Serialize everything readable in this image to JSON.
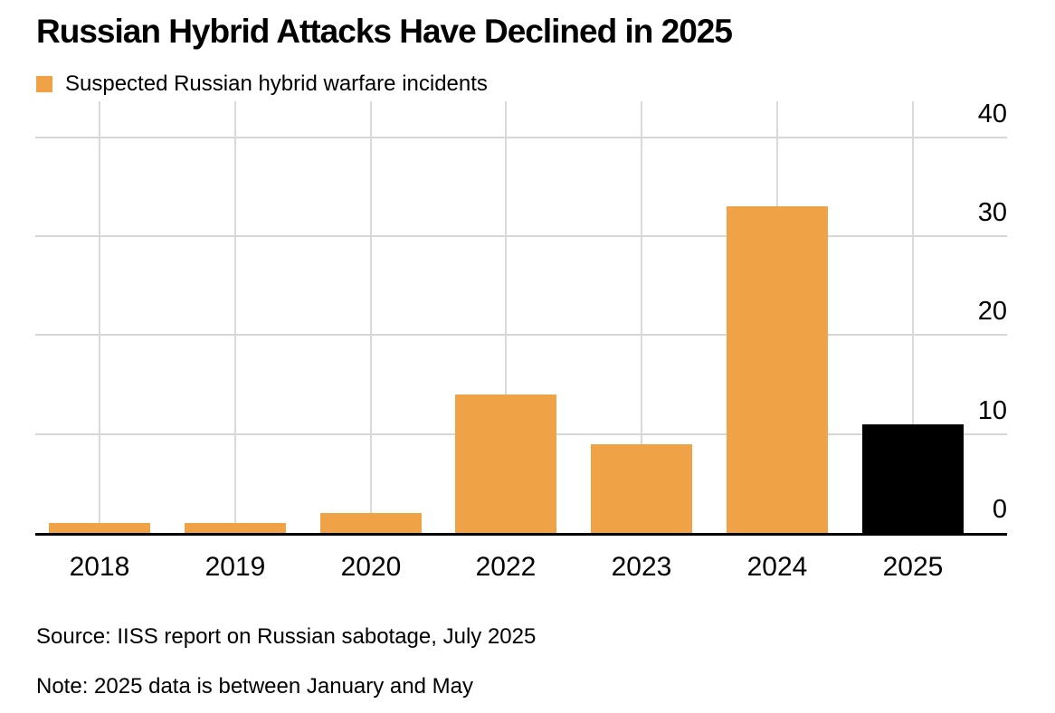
{
  "header": {
    "title": "Russian Hybrid Attacks Have Declined in 2025"
  },
  "legend": {
    "label": "Suspected Russian hybrid warfare incidents",
    "swatch_color": "#F0A346"
  },
  "footer": {
    "source": "Source: IISS report on Russian sabotage, July 2025",
    "note": "Note: 2025 data is between January and May"
  },
  "colors": {
    "bar_default": "#F0A346",
    "bar_highlight": "#000000",
    "gridline": "#D6D6D6",
    "axis": "#000000",
    "text": "#000000",
    "background": "#FFFFFF"
  },
  "chart_data": {
    "type": "bar",
    "title": "Russian Hybrid Attacks Have Declined in 2025",
    "legend_entries": [
      "Suspected Russian hybrid warfare incidents"
    ],
    "categories": [
      "2018",
      "2019",
      "2020",
      "2022",
      "2023",
      "2024",
      "2025"
    ],
    "series": [
      {
        "name": "Suspected Russian hybrid warfare incidents",
        "values": [
          1,
          1,
          2,
          14,
          9,
          33,
          11
        ]
      }
    ],
    "bar_colors": [
      "#F0A346",
      "#F0A346",
      "#F0A346",
      "#F0A346",
      "#F0A346",
      "#F0A346",
      "#000000"
    ],
    "highlighted_category": "2025",
    "xlabel": "",
    "ylabel": "",
    "ylim": [
      0,
      40
    ],
    "yticks": [
      0,
      10,
      20,
      30,
      40
    ],
    "ytick_side": "right",
    "grid": true,
    "legend_position": "top-left",
    "source": "Source: IISS report on Russian sabotage, July 2025",
    "note": "Note: 2025 data is between January and May"
  }
}
